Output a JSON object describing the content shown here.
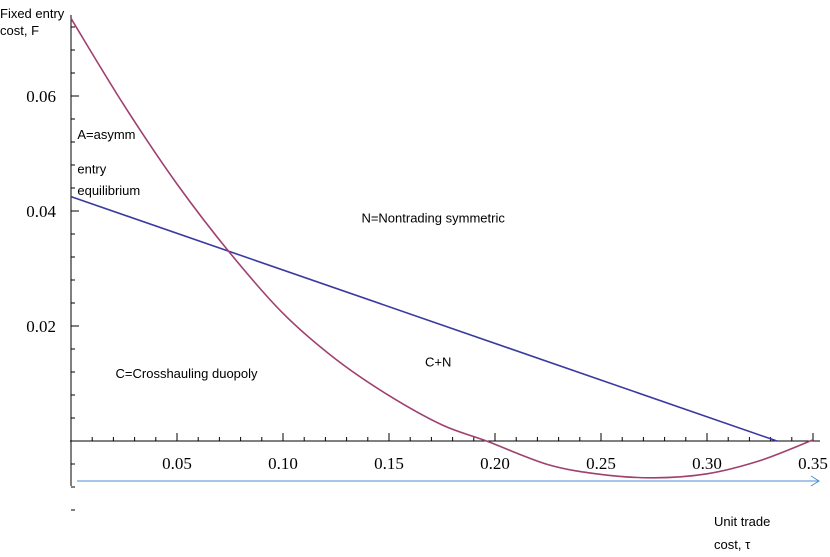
{
  "chart_data": {
    "type": "line",
    "ylabel_lines": [
      "Fixed entry",
      "cost, F"
    ],
    "xlabel_lines": [
      "Unit trade",
      "cost, τ"
    ],
    "xlim": [
      0,
      0.35
    ],
    "ylim": [
      -0.012,
      0.075
    ],
    "x_ticks": [
      0.05,
      0.1,
      0.15,
      0.2,
      0.25,
      0.3,
      0.35
    ],
    "x_tick_labels": [
      "0.05",
      "0.10",
      "0.15",
      "0.20",
      "0.25",
      "0.30",
      "0.35"
    ],
    "y_ticks": [
      0.02,
      0.04,
      0.06
    ],
    "y_tick_labels": [
      "0.02",
      "0.04",
      "0.06"
    ],
    "series": [
      {
        "color": "#3a3aa0",
        "x": [
          0,
          0.333
        ],
        "y": [
          0.0425,
          0
        ]
      },
      {
        "color": "#a0406f",
        "x": [
          0,
          0.025,
          0.05,
          0.075,
          0.1,
          0.125,
          0.15,
          0.175,
          0.196,
          0.225,
          0.25,
          0.275,
          0.3,
          0.325,
          0.35
        ],
        "y": [
          0.0735,
          0.0584,
          0.0447,
          0.0327,
          0.0222,
          0.0142,
          0.0079,
          0.0028,
          0,
          -0.0041,
          -0.0058,
          -0.0064,
          -0.0057,
          -0.0034,
          0.0002
        ]
      }
    ],
    "region_labels": [
      {
        "text": "A=asymm",
        "x": 0.003,
        "y": 0.0525
      },
      {
        "text": "entry",
        "x": 0.003,
        "y": 0.0465
      },
      {
        "text": "equilibrium",
        "x": 0.003,
        "y": 0.0428
      },
      {
        "text": "N=Nontrading symmetric",
        "x": 0.137,
        "y": 0.038
      },
      {
        "text": "C=Crosshauling duopoly",
        "x": 0.021,
        "y": 0.011
      },
      {
        "text": "C+N",
        "x": 0.167,
        "y": 0.013
      }
    ],
    "arrow_color": "#4a8fd0"
  }
}
